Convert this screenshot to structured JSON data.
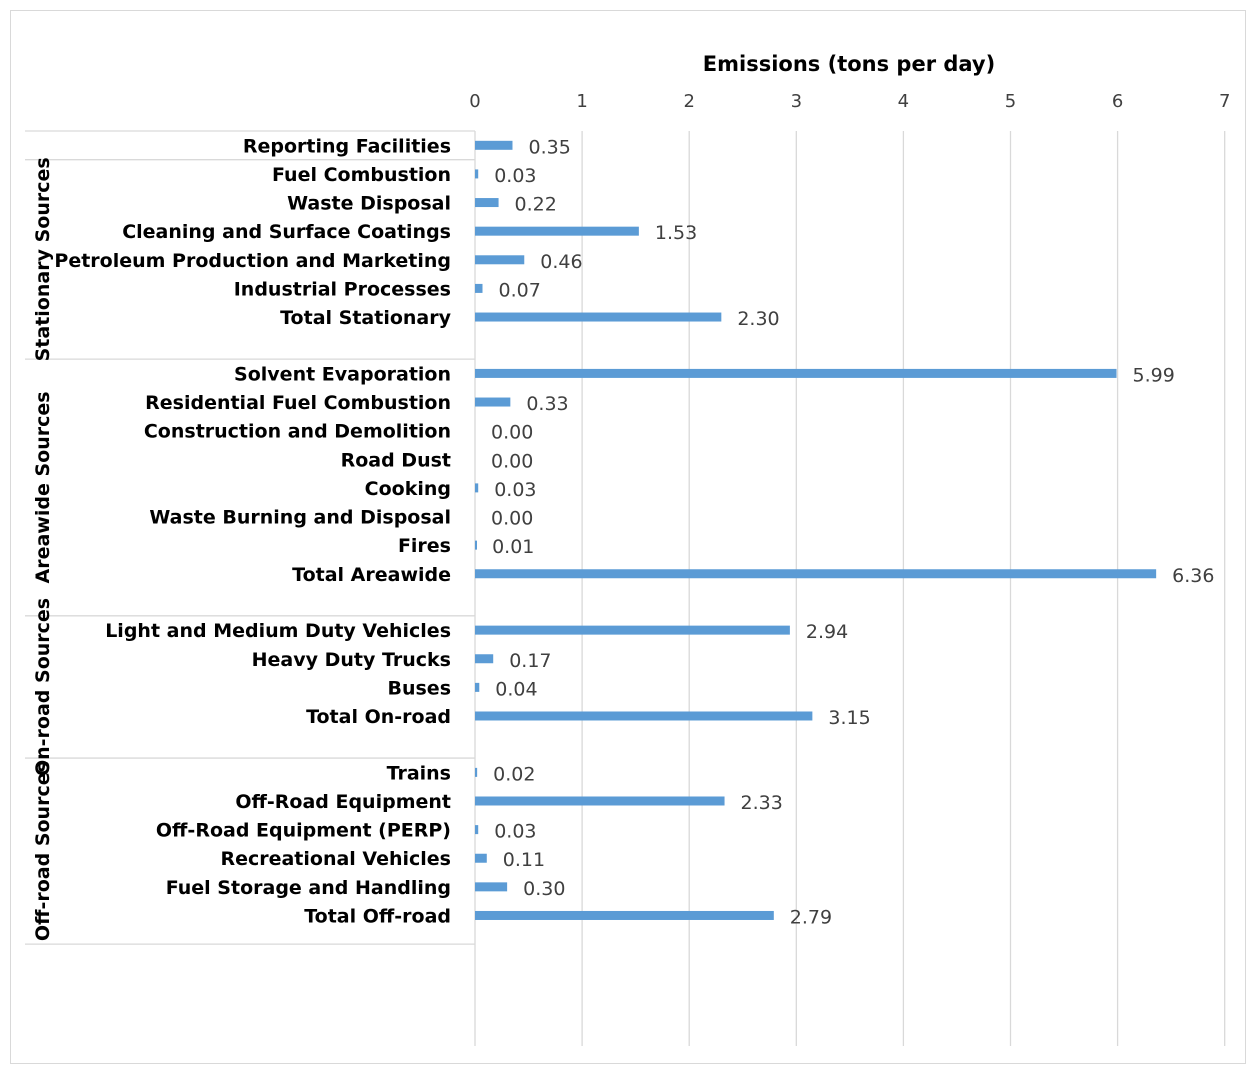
{
  "chart_data": {
    "type": "bar",
    "orientation": "horizontal",
    "xlabel": "Emissions (tons per day)",
    "xlim": [
      0,
      7
    ],
    "xticks": [
      0,
      1,
      2,
      3,
      4,
      5,
      6,
      7
    ],
    "grid": true,
    "bar_color": "#5b9bd5",
    "groups": [
      {
        "name": "",
        "items": [
          {
            "label": "Reporting Facilities",
            "value": 0.35,
            "value_label": "0.35"
          }
        ]
      },
      {
        "name": "Stationary Sources",
        "items": [
          {
            "label": "Fuel Combustion",
            "value": 0.03,
            "value_label": "0.03"
          },
          {
            "label": "Waste Disposal",
            "value": 0.22,
            "value_label": "0.22"
          },
          {
            "label": "Cleaning and Surface Coatings",
            "value": 1.53,
            "value_label": "1.53"
          },
          {
            "label": "Petroleum Production and Marketing",
            "value": 0.46,
            "value_label": "0.46"
          },
          {
            "label": "Industrial Processes",
            "value": 0.07,
            "value_label": "0.07"
          },
          {
            "label": "Total Stationary",
            "value": 2.3,
            "value_label": "2.30"
          }
        ]
      },
      {
        "name": "Areawide Sources",
        "items": [
          {
            "label": "Solvent Evaporation",
            "value": 5.99,
            "value_label": "5.99"
          },
          {
            "label": "Residential Fuel Combustion",
            "value": 0.33,
            "value_label": "0.33"
          },
          {
            "label": "Construction and Demolition",
            "value": 0.0,
            "value_label": "0.00"
          },
          {
            "label": "Road Dust",
            "value": 0.0,
            "value_label": "0.00"
          },
          {
            "label": "Cooking",
            "value": 0.03,
            "value_label": "0.03"
          },
          {
            "label": "Waste Burning and Disposal",
            "value": 0.0,
            "value_label": "0.00"
          },
          {
            "label": "Fires",
            "value": 0.01,
            "value_label": "0.01"
          },
          {
            "label": "Total Areawide",
            "value": 6.36,
            "value_label": "6.36"
          }
        ]
      },
      {
        "name": "On-road Sources",
        "items": [
          {
            "label": "Light and Medium Duty Vehicles",
            "value": 2.94,
            "value_label": "2.94"
          },
          {
            "label": "Heavy Duty Trucks",
            "value": 0.17,
            "value_label": "0.17"
          },
          {
            "label": "Buses",
            "value": 0.04,
            "value_label": "0.04"
          },
          {
            "label": "Total On-road",
            "value": 3.15,
            "value_label": "3.15"
          }
        ]
      },
      {
        "name": "Off-road Sources",
        "items": [
          {
            "label": "Trains",
            "value": 0.02,
            "value_label": "0.02"
          },
          {
            "label": "Off-Road Equipment",
            "value": 2.33,
            "value_label": "2.33"
          },
          {
            "label": "Off-Road Equipment (PERP)",
            "value": 0.03,
            "value_label": "0.03"
          },
          {
            "label": "Recreational Vehicles",
            "value": 0.11,
            "value_label": "0.11"
          },
          {
            "label": "Fuel Storage and Handling",
            "value": 0.3,
            "value_label": "0.30"
          },
          {
            "label": "Total Off-road",
            "value": 2.79,
            "value_label": "2.79"
          }
        ]
      }
    ]
  }
}
